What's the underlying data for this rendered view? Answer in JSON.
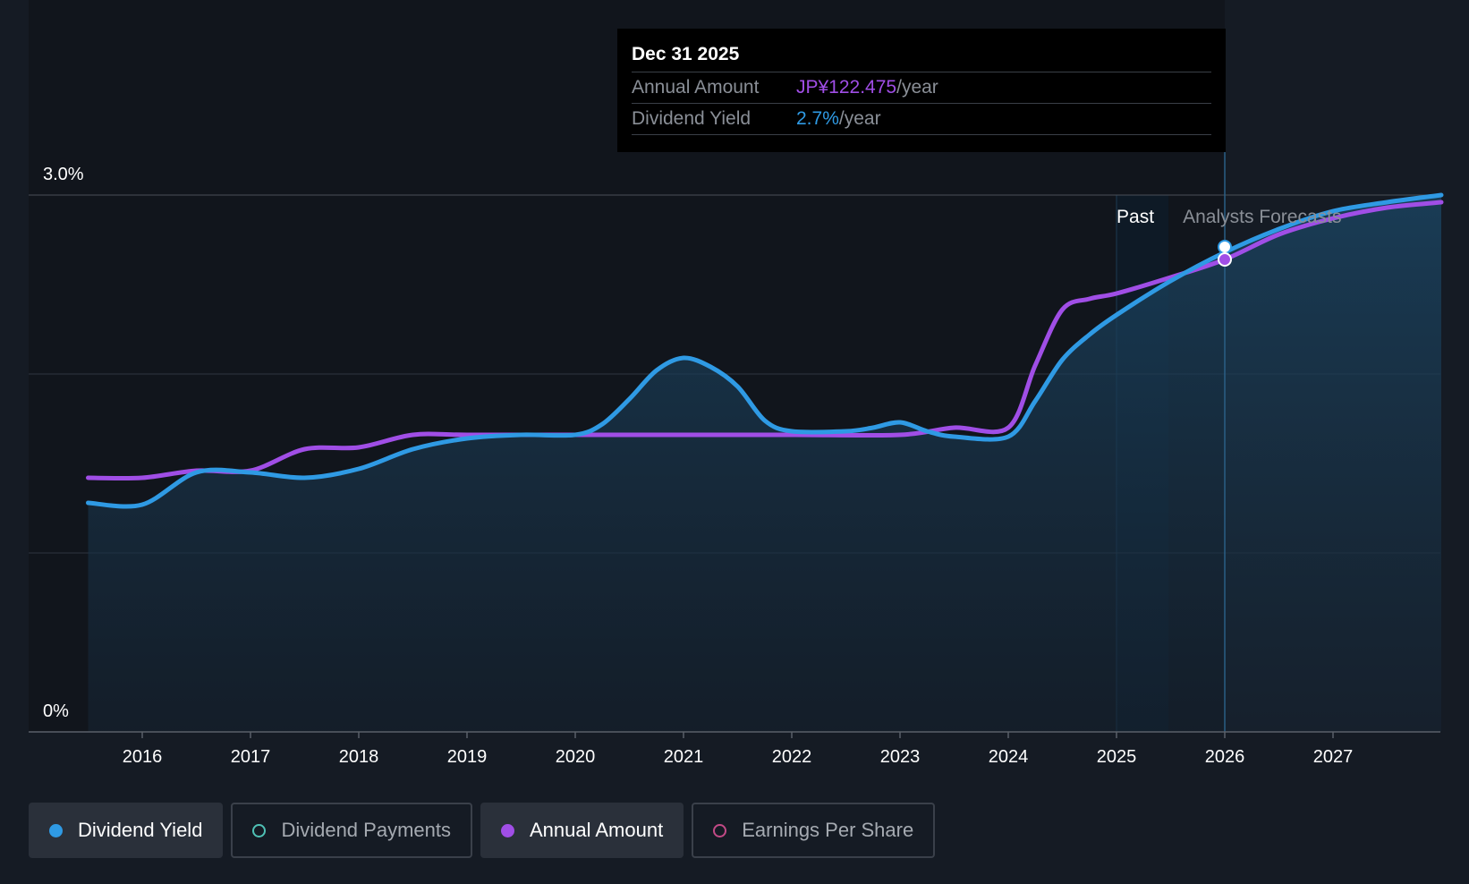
{
  "chart_data": {
    "type": "line",
    "title": "",
    "xlabel": "",
    "ylabel": "",
    "y_axis": {
      "min": 0,
      "max": 3.0,
      "unit": "%",
      "labels": [
        "3.0%",
        "0%"
      ]
    },
    "x_axis": {
      "ticks": [
        "2016",
        "2017",
        "2018",
        "2019",
        "2020",
        "2021",
        "2022",
        "2023",
        "2024",
        "2025",
        "2026",
        "2027"
      ]
    },
    "regions": {
      "past_label": "Past",
      "forecast_label": "Analysts Forecasts"
    },
    "series": [
      {
        "name": "Dividend Yield",
        "color": "#2f9ae4",
        "points": [
          [
            2015.5,
            1.28
          ],
          [
            2016.0,
            1.27
          ],
          [
            2016.5,
            1.45
          ],
          [
            2017.0,
            1.45
          ],
          [
            2017.5,
            1.42
          ],
          [
            2018.0,
            1.47
          ],
          [
            2018.5,
            1.58
          ],
          [
            2019.0,
            1.64
          ],
          [
            2019.5,
            1.66
          ],
          [
            2020.0,
            1.66
          ],
          [
            2020.25,
            1.72
          ],
          [
            2020.5,
            1.86
          ],
          [
            2020.75,
            2.02
          ],
          [
            2021.0,
            2.09
          ],
          [
            2021.25,
            2.04
          ],
          [
            2021.5,
            1.93
          ],
          [
            2021.75,
            1.74
          ],
          [
            2022.0,
            1.68
          ],
          [
            2022.5,
            1.68
          ],
          [
            2022.75,
            1.7
          ],
          [
            2023.0,
            1.73
          ],
          [
            2023.25,
            1.68
          ],
          [
            2023.5,
            1.65
          ],
          [
            2024.0,
            1.65
          ],
          [
            2024.25,
            1.85
          ],
          [
            2024.5,
            2.08
          ],
          [
            2024.75,
            2.22
          ],
          [
            2025.0,
            2.33
          ],
          [
            2025.5,
            2.52
          ],
          [
            2026.0,
            2.68
          ],
          [
            2026.5,
            2.81
          ],
          [
            2027.0,
            2.91
          ],
          [
            2027.5,
            2.96
          ],
          [
            2028.0,
            3.0
          ]
        ]
      },
      {
        "name": "Annual Amount",
        "color": "#a04ee6",
        "points": [
          [
            2015.5,
            1.42
          ],
          [
            2016.0,
            1.42
          ],
          [
            2016.5,
            1.46
          ],
          [
            2017.0,
            1.46
          ],
          [
            2017.5,
            1.58
          ],
          [
            2018.0,
            1.59
          ],
          [
            2018.5,
            1.66
          ],
          [
            2019.0,
            1.66
          ],
          [
            2020.0,
            1.66
          ],
          [
            2021.0,
            1.66
          ],
          [
            2022.0,
            1.66
          ],
          [
            2023.0,
            1.66
          ],
          [
            2023.5,
            1.7
          ],
          [
            2024.0,
            1.7
          ],
          [
            2024.25,
            2.05
          ],
          [
            2024.5,
            2.36
          ],
          [
            2024.75,
            2.42
          ],
          [
            2025.0,
            2.45
          ],
          [
            2025.5,
            2.54
          ],
          [
            2026.0,
            2.64
          ],
          [
            2026.5,
            2.78
          ],
          [
            2027.0,
            2.87
          ],
          [
            2027.5,
            2.93
          ],
          [
            2028.0,
            2.96
          ]
        ]
      }
    ],
    "highlight": {
      "x": 2026.0,
      "date": "Dec 31 2025",
      "annual_amount": 122.475,
      "dividend_yield": 2.7
    }
  },
  "tooltip": {
    "date": "Dec 31 2025",
    "rows": [
      {
        "name": "Annual Amount",
        "value": "JP¥122.475",
        "suffix": "/year"
      },
      {
        "name": "Dividend Yield",
        "value": "2.7%",
        "suffix": "/year"
      }
    ]
  },
  "legend": [
    {
      "label": "Dividend Yield",
      "color": "#2f9ae4",
      "state": "active",
      "marker": "filled"
    },
    {
      "label": "Dividend Payments",
      "color": "#4fc1b5",
      "state": "inactive",
      "marker": "hollow"
    },
    {
      "label": "Annual Amount",
      "color": "#a04ee6",
      "state": "active",
      "marker": "filled"
    },
    {
      "label": "Earnings Per Share",
      "color": "#c24a86",
      "state": "inactive",
      "marker": "hollow"
    }
  ]
}
